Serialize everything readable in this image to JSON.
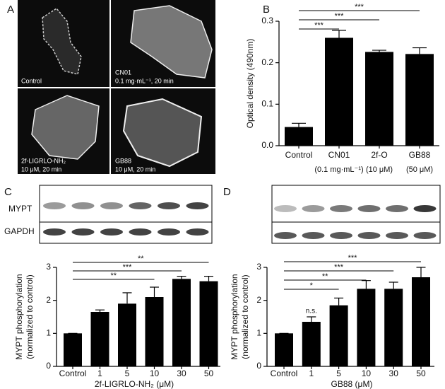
{
  "panels": {
    "a": "A",
    "b": "B",
    "c": "C",
    "d": "D"
  },
  "micrographs": [
    {
      "label": "Control"
    },
    {
      "label": "CN01",
      "sublabel": "0.1 mg·mL⁻¹, 20 min"
    },
    {
      "label": "2f-LIGRLO-NH₂",
      "sublabel": "10 μM, 20 min"
    },
    {
      "label": "GB88",
      "sublabel": "10 μM, 20 min"
    }
  ],
  "blot_labels": [
    "MYPT",
    "GAPDH"
  ],
  "chart_data": [
    {
      "type": "bar",
      "ylabel": [
        "Optical density (490nm)"
      ],
      "categories": [
        "Control",
        "CN01",
        "2f-O",
        "GB88"
      ],
      "category_sublabels": [
        null,
        "(0.1 mg·mL⁻¹)",
        "(10 μM)",
        "(50 μM)"
      ],
      "values": [
        0.045,
        0.26,
        0.226,
        0.221
      ],
      "errors": [
        0.009,
        0.018,
        0.004,
        0.015
      ],
      "color": "#000000",
      "ylim": [
        0,
        0.3
      ],
      "yticks": [
        {
          "value": 0,
          "label": "0.0"
        },
        0.1,
        0.2,
        0.3
      ],
      "significance": [
        {
          "from": 0,
          "to": 1,
          "label": "***"
        },
        {
          "from": 0,
          "to": 2,
          "label": "***"
        },
        {
          "from": 0,
          "to": 3,
          "label": "***"
        }
      ]
    },
    {
      "type": "bar",
      "ylabel": [
        "MYPT phosphorylation",
        "(normalized to control)"
      ],
      "xlabel": "2f-LIGRLO-NH₂ (μM)",
      "categories": [
        "Control",
        "1",
        "5",
        "10",
        "30",
        "50"
      ],
      "values": [
        1.0,
        1.65,
        1.9,
        2.1,
        2.65,
        2.58
      ],
      "errors": [
        0,
        0.06,
        0.33,
        0.3,
        0.08,
        0.15
      ],
      "color": "#000000",
      "ylim": [
        0,
        3
      ],
      "yticks": [
        0,
        1,
        2,
        3
      ],
      "significance": [
        {
          "from": 0,
          "to": 3,
          "label": "**"
        },
        {
          "from": 0,
          "to": 4,
          "label": "***"
        },
        {
          "from": 0,
          "to": 5,
          "label": "**"
        }
      ]
    },
    {
      "type": "bar",
      "ylabel": [
        "MYPT phosphorylation",
        "(normalized to control)"
      ],
      "xlabel": "GB88 (μM)",
      "categories": [
        "Control",
        "1",
        "5",
        "10",
        "30",
        "50"
      ],
      "values": [
        1.0,
        1.35,
        1.85,
        2.35,
        2.35,
        2.7
      ],
      "errors": [
        0,
        0.15,
        0.22,
        0.25,
        0.2,
        0.3
      ],
      "color": "#000000",
      "ylim": [
        0,
        3
      ],
      "yticks": [
        0,
        1,
        2,
        3
      ],
      "annotations": [
        {
          "category": 1,
          "text": "n.s."
        }
      ],
      "significance": [
        {
          "from": 0,
          "to": 2,
          "label": "*"
        },
        {
          "from": 0,
          "to": 3,
          "label": "**"
        },
        {
          "from": 0,
          "to": 4,
          "label": "***"
        },
        {
          "from": 0,
          "to": 5,
          "label": "***"
        }
      ]
    }
  ]
}
